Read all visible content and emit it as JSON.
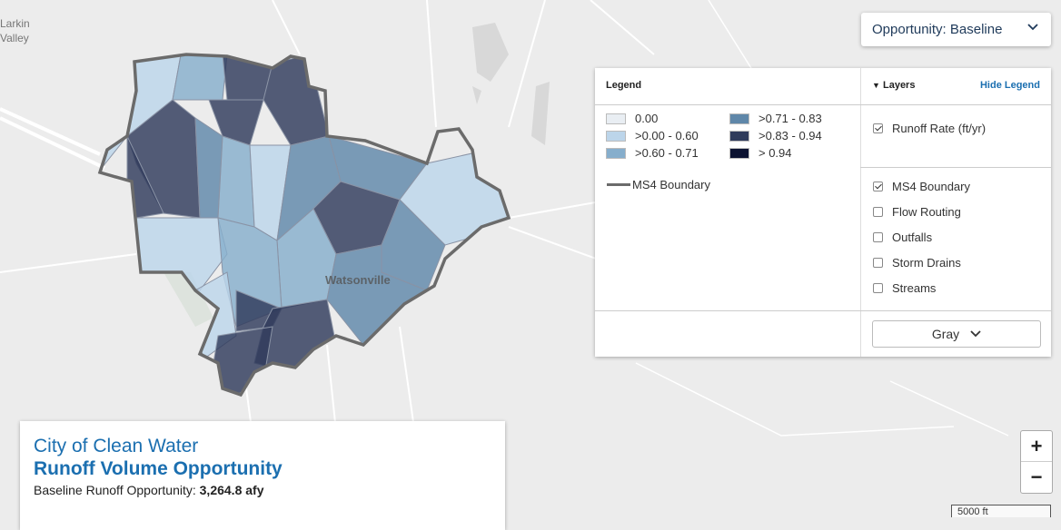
{
  "dropdown": {
    "label": "Opportunity: Baseline"
  },
  "legend": {
    "title": "Legend",
    "hide": "Hide Legend",
    "classes": [
      {
        "label": "0.00",
        "color": "#e9eef3"
      },
      {
        "label": ">0.00 - 0.60",
        "color": "#bcd5ea"
      },
      {
        "label": ">0.60 - 0.71",
        "color": "#86aecc"
      },
      {
        "label": ">0.71 - 0.83",
        "color": "#5f87a9"
      },
      {
        "label": ">0.83 - 0.94",
        "color": "#2f3b5b"
      },
      {
        "label": "> 0.94",
        "color": "#0c1332"
      }
    ],
    "boundary": "MS4 Boundary"
  },
  "layers": {
    "title": "Layers",
    "groups": [
      [
        {
          "label": "Runoff Rate (ft/yr)",
          "checked": true
        }
      ],
      [
        {
          "label": "MS4 Boundary",
          "checked": true
        },
        {
          "label": "Flow Routing",
          "checked": false
        },
        {
          "label": "Outfalls",
          "checked": false
        },
        {
          "label": "Storm Drains",
          "checked": false
        },
        {
          "label": "Streams",
          "checked": false
        }
      ]
    ],
    "basemap": "Gray"
  },
  "info": {
    "city": "City of Clean Water",
    "title": "Runoff Volume Opportunity",
    "summary_label": "Baseline Runoff Opportunity:",
    "summary_value": "3,264.8 afy"
  },
  "map_labels": [
    "Larkin",
    "Valley",
    "Watsonville"
  ],
  "zoom": {
    "in": "+",
    "out": "−"
  },
  "scale": "5000 ft"
}
